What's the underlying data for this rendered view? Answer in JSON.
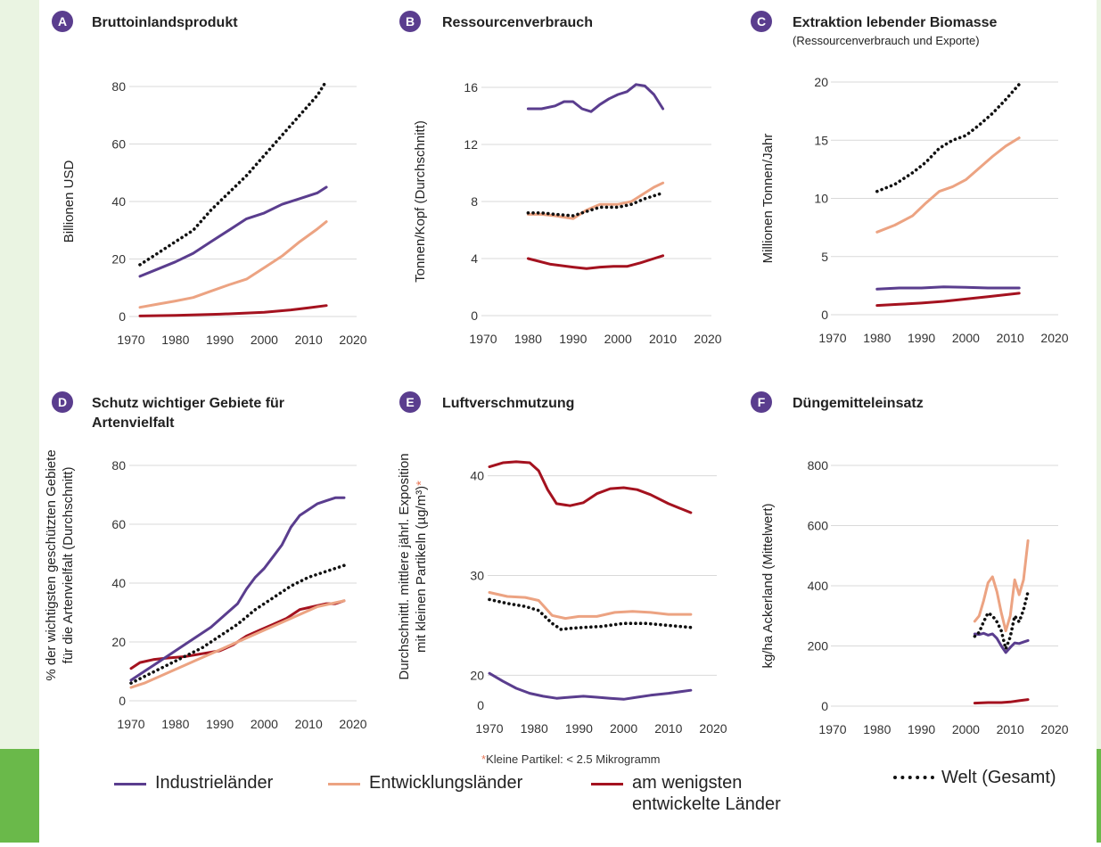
{
  "colors": {
    "industrial": "#5a3d8e",
    "developing": "#eca382",
    "least": "#a4121f",
    "world": "#111111",
    "badge": "#5a3d8e",
    "grid": "#d9d9d9",
    "accent_green": "#6ab94a"
  },
  "legend": {
    "industrial": "Industrieländer",
    "developing": "Entwicklungsländer",
    "least_line1": "am wenigsten",
    "least_line2": "entwickelte Länder",
    "world": "Welt (Gesamt)"
  },
  "footnote": {
    "star": "*",
    "text": "Kleine Partikel: < 2.5 Mikrogramm"
  },
  "chart_data": [
    {
      "badge": "A",
      "type": "line",
      "title": "Bruttoinlandsprodukt",
      "subtitle": "",
      "ylabel_lines": [
        "Billionen USD"
      ],
      "xlim": [
        1970,
        2020
      ],
      "ylim": [
        0,
        80
      ],
      "xticks": [
        1970,
        1980,
        1990,
        2000,
        2010,
        2020
      ],
      "yticks": [
        0,
        20,
        40,
        60,
        80
      ],
      "series": [
        {
          "key": "industrial",
          "x": [
            1972,
            1976,
            1980,
            1984,
            1988,
            1992,
            1996,
            2000,
            2004,
            2008,
            2012,
            2014
          ],
          "y": [
            14,
            16.5,
            19,
            22,
            26,
            30,
            34,
            36,
            39,
            41,
            43,
            45
          ]
        },
        {
          "key": "developing",
          "x": [
            1972,
            1976,
            1980,
            1984,
            1988,
            1992,
            1996,
            2000,
            2004,
            2008,
            2012,
            2014
          ],
          "y": [
            3.2,
            4.3,
            5.4,
            6.6,
            8.8,
            11,
            13,
            17,
            21,
            26,
            30.5,
            33
          ]
        },
        {
          "key": "least",
          "x": [
            1972,
            1980,
            1990,
            2000,
            2006,
            2010,
            2014
          ],
          "y": [
            0.2,
            0.4,
            0.8,
            1.5,
            2.3,
            3,
            3.8
          ]
        },
        {
          "key": "world",
          "x": [
            1972,
            1976,
            1980,
            1984,
            1988,
            1992,
            1996,
            2000,
            2004,
            2008,
            2012,
            2014
          ],
          "y": [
            18,
            22,
            26,
            30,
            37,
            43,
            49,
            56,
            63,
            70,
            77,
            82
          ]
        }
      ]
    },
    {
      "badge": "B",
      "type": "line",
      "title": "Ressourcenverbrauch",
      "subtitle": "",
      "ylabel_lines": [
        "Tonnen/Kopf (Durchschnitt)"
      ],
      "xlim": [
        1970,
        2020
      ],
      "ylim": [
        0,
        16
      ],
      "xticks": [
        1970,
        1980,
        1990,
        2000,
        2010,
        2020
      ],
      "yticks": [
        0,
        4,
        8,
        12,
        16
      ],
      "series": [
        {
          "key": "industrial",
          "x": [
            1980,
            1983,
            1986,
            1988,
            1990,
            1992,
            1994,
            1996,
            1998,
            2000,
            2002,
            2004,
            2006,
            2008,
            2010
          ],
          "y": [
            14.5,
            14.5,
            14.7,
            15,
            15,
            14.5,
            14.3,
            14.8,
            15.2,
            15.5,
            15.7,
            16.2,
            16.1,
            15.5,
            14.5
          ]
        },
        {
          "key": "developing",
          "x": [
            1980,
            1983,
            1986,
            1988,
            1990,
            1993,
            1996,
            2000,
            2003,
            2006,
            2008,
            2010
          ],
          "y": [
            7.1,
            7.1,
            7,
            6.9,
            6.8,
            7.4,
            7.8,
            7.8,
            8,
            8.6,
            9,
            9.3
          ]
        },
        {
          "key": "least",
          "x": [
            1980,
            1985,
            1990,
            1993,
            1996,
            1999,
            2002,
            2005,
            2008,
            2010
          ],
          "y": [
            4.0,
            3.6,
            3.4,
            3.3,
            3.4,
            3.45,
            3.45,
            3.7,
            4,
            4.2
          ]
        },
        {
          "key": "world",
          "x": [
            1980,
            1983,
            1986,
            1990,
            1993,
            1996,
            2000,
            2003,
            2006,
            2008,
            2010
          ],
          "y": [
            7.2,
            7.2,
            7.1,
            7,
            7.3,
            7.6,
            7.6,
            7.8,
            8.2,
            8.4,
            8.6
          ]
        }
      ]
    },
    {
      "badge": "C",
      "type": "line",
      "title": "Extraktion lebender Biomasse",
      "subtitle": "(Ressourcenverbrauch und Exporte)",
      "ylabel_lines": [
        "Millionen Tonnen/Jahr"
      ],
      "xlim": [
        1970,
        2020
      ],
      "ylim": [
        0,
        20
      ],
      "xticks": [
        1970,
        1980,
        1990,
        2000,
        2010,
        2020
      ],
      "yticks": [
        0,
        5,
        10,
        15,
        20
      ],
      "series": [
        {
          "key": "industrial",
          "x": [
            1980,
            1985,
            1990,
            1995,
            2000,
            2005,
            2012
          ],
          "y": [
            2.2,
            2.3,
            2.3,
            2.4,
            2.35,
            2.3,
            2.3
          ]
        },
        {
          "key": "developing",
          "x": [
            1980,
            1984,
            1988,
            1991,
            1994,
            1997,
            2000,
            2003,
            2006,
            2009,
            2012
          ],
          "y": [
            7.1,
            7.7,
            8.5,
            9.6,
            10.6,
            11,
            11.6,
            12.6,
            13.6,
            14.5,
            15.2
          ]
        },
        {
          "key": "least",
          "x": [
            1980,
            1985,
            1990,
            1995,
            2000,
            2005,
            2012
          ],
          "y": [
            0.8,
            0.9,
            1,
            1.15,
            1.35,
            1.55,
            1.85
          ]
        },
        {
          "key": "world",
          "x": [
            1980,
            1984,
            1988,
            1991,
            1994,
            1997,
            2000,
            2003,
            2006,
            2009,
            2012
          ],
          "y": [
            10.6,
            11.2,
            12.2,
            13.1,
            14.3,
            15,
            15.4,
            16.3,
            17.3,
            18.5,
            19.8
          ]
        }
      ]
    },
    {
      "badge": "D",
      "type": "line",
      "title_lines": [
        "Schutz wichtiger Gebiete für",
        "Artenvielfalt"
      ],
      "subtitle": "",
      "ylabel_lines": [
        "% der wichtigsten geschützten Gebiete",
        "für die Artenvielfalt (Durchschnitt)"
      ],
      "xlim": [
        1970,
        2020
      ],
      "ylim": [
        0,
        80
      ],
      "xticks": [
        1970,
        1980,
        1990,
        2000,
        2010,
        2020
      ],
      "yticks": [
        0,
        20,
        40,
        60,
        80
      ],
      "series": [
        {
          "key": "industrial",
          "x": [
            1970,
            1973,
            1976,
            1979,
            1982,
            1985,
            1988,
            1991,
            1994,
            1996,
            1998,
            2000,
            2002,
            2004,
            2006,
            2008,
            2010,
            2012,
            2014,
            2016,
            2018
          ],
          "y": [
            7,
            10,
            13,
            16,
            19,
            22,
            25,
            29,
            33,
            38,
            42,
            45,
            49,
            53,
            59,
            63,
            65,
            67,
            68,
            69,
            69
          ]
        },
        {
          "key": "developing",
          "x": [
            1970,
            1973,
            1976,
            1979,
            1982,
            1985,
            1988,
            1991,
            1994,
            1997,
            2000,
            2003,
            2006,
            2009,
            2012,
            2015,
            2018
          ],
          "y": [
            4.5,
            6,
            8,
            10,
            12,
            14,
            16,
            18,
            20,
            22,
            24,
            26,
            28,
            30,
            32,
            33,
            34
          ]
        },
        {
          "key": "least",
          "x": [
            1970,
            1972,
            1975,
            1978,
            1982,
            1986,
            1990,
            1993,
            1996,
            1999,
            2002,
            2005,
            2008,
            2011,
            2014,
            2016,
            2018
          ],
          "y": [
            11,
            13,
            14,
            14.5,
            15,
            16,
            17,
            19,
            22,
            24,
            26,
            28,
            31,
            32,
            33,
            33,
            34
          ]
        },
        {
          "key": "world",
          "x": [
            1970,
            1974,
            1978,
            1982,
            1986,
            1990,
            1994,
            1998,
            2002,
            2006,
            2010,
            2014,
            2018
          ],
          "y": [
            6,
            9,
            12,
            15,
            18,
            22,
            26,
            31,
            35,
            39,
            42,
            44,
            46
          ]
        }
      ]
    },
    {
      "badge": "E",
      "type": "line",
      "title": "Luftverschmutzung",
      "subtitle": "",
      "ylabel_lines": [
        "Durchschnittl. mittlere jährl. Exposition",
        "mit kleinen Partikeln (µg/m³)"
      ],
      "ylabel_star": "*",
      "xlim": [
        1970,
        2020
      ],
      "ylim": [
        17,
        43
      ],
      "xticks": [
        1970,
        1980,
        1990,
        2000,
        2010,
        2020
      ],
      "yticks": [
        20,
        30,
        40
      ],
      "ytick_zero_label": "0",
      "series": [
        {
          "key": "industrial",
          "x": [
            1970,
            1973,
            1976,
            1979,
            1982,
            1985,
            1988,
            1991,
            1994,
            1997,
            2000,
            2003,
            2006,
            2010,
            2015
          ],
          "y": [
            20.2,
            19.4,
            18.7,
            18.2,
            17.9,
            17.7,
            17.8,
            17.9,
            17.8,
            17.7,
            17.6,
            17.8,
            18,
            18.2,
            18.5
          ]
        },
        {
          "key": "developing",
          "x": [
            1970,
            1974,
            1978,
            1981,
            1984,
            1987,
            1990,
            1994,
            1998,
            2002,
            2006,
            2010,
            2015
          ],
          "y": [
            28.3,
            27.9,
            27.8,
            27.5,
            26,
            25.7,
            25.9,
            25.9,
            26.3,
            26.4,
            26.3,
            26.1,
            26.1
          ]
        },
        {
          "key": "least",
          "x": [
            1970,
            1973,
            1976,
            1979,
            1981,
            1983,
            1985,
            1988,
            1991,
            1994,
            1997,
            2000,
            2003,
            2006,
            2010,
            2015
          ],
          "y": [
            40.9,
            41.3,
            41.4,
            41.3,
            40.5,
            38.6,
            37.2,
            37,
            37.3,
            38.2,
            38.7,
            38.8,
            38.6,
            38.1,
            37.2,
            36.3
          ]
        },
        {
          "key": "world",
          "x": [
            1970,
            1974,
            1978,
            1981,
            1984,
            1986,
            1988,
            1991,
            1995,
            2000,
            2005,
            2010,
            2015
          ],
          "y": [
            27.6,
            27.2,
            26.9,
            26.5,
            25.2,
            24.6,
            24.7,
            24.8,
            24.9,
            25.2,
            25.2,
            25,
            24.8
          ]
        }
      ]
    },
    {
      "badge": "F",
      "type": "line",
      "title": "Düngemitteleinsatz",
      "subtitle": "",
      "ylabel_lines": [
        "kg/ha Ackerland (Mittelwert)"
      ],
      "xlim": [
        1970,
        2020
      ],
      "ylim": [
        0,
        800
      ],
      "xticks": [
        1970,
        1980,
        1990,
        2000,
        2010,
        2020
      ],
      "yticks": [
        0,
        200,
        400,
        600,
        800
      ],
      "series": [
        {
          "key": "industrial",
          "x": [
            2002,
            2003,
            2004,
            2005,
            2006,
            2007,
            2008,
            2009,
            2010,
            2011,
            2012,
            2013,
            2014
          ],
          "y": [
            240,
            238,
            242,
            236,
            240,
            225,
            200,
            178,
            195,
            210,
            208,
            213,
            218
          ]
        },
        {
          "key": "developing",
          "x": [
            2002,
            2003,
            2004,
            2005,
            2006,
            2007,
            2008,
            2009,
            2010,
            2011,
            2012,
            2013,
            2014
          ],
          "y": [
            282,
            300,
            350,
            410,
            430,
            380,
            310,
            250,
            300,
            420,
            370,
            420,
            550
          ]
        },
        {
          "key": "least",
          "x": [
            2002,
            2005,
            2008,
            2010,
            2012,
            2014
          ],
          "y": [
            10,
            12,
            12,
            14,
            18,
            22
          ]
        },
        {
          "key": "world",
          "x": [
            2002,
            2003,
            2004,
            2005,
            2006,
            2007,
            2008,
            2009,
            2010,
            2011,
            2012,
            2013,
            2014
          ],
          "y": [
            232,
            245,
            280,
            310,
            300,
            280,
            250,
            190,
            230,
            300,
            280,
            320,
            380
          ]
        }
      ]
    }
  ]
}
